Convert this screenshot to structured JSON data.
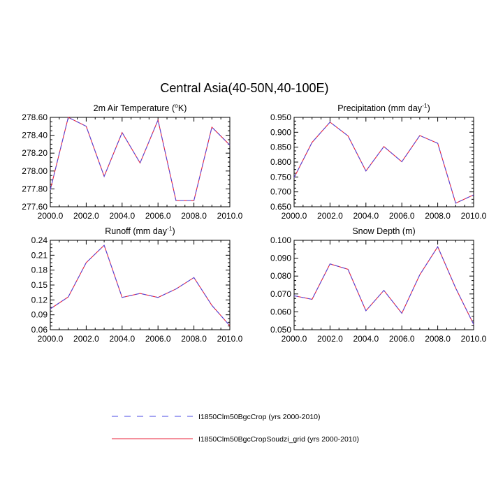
{
  "figure": {
    "title": "Central Asia(40-50N,40-100E)"
  },
  "legend": {
    "items": [
      {
        "label": "I1850Clm50BgcCrop (yrs 2000-2010)",
        "color": "#4a4ae6",
        "dash": "dashed"
      },
      {
        "label": "I1850Clm50BgcCropSoudzi_grid (yrs 2000-2010)",
        "color": "#e8203a",
        "dash": "solid"
      }
    ]
  },
  "chart_data": [
    {
      "type": "line",
      "title": "2m Air Temperature (°K)",
      "title_parts": [
        "2m Air Temperature (",
        "o",
        "K)"
      ],
      "xlim": [
        2000,
        2010
      ],
      "ylim": [
        277.6,
        278.6
      ],
      "xticks": [
        "2000.0",
        "2002.0",
        "2004.0",
        "2006.0",
        "2008.0",
        "2010.0"
      ],
      "yticks": [
        "277.60",
        "277.80",
        "278.00",
        "278.20",
        "278.40",
        "278.60"
      ],
      "x": [
        2000,
        2001,
        2002,
        2003,
        2004,
        2005,
        2006,
        2007,
        2008,
        2009,
        2010
      ],
      "series": [
        {
          "name": "I1850Clm50BgcCrop (yrs 2000-2010)",
          "values": [
            277.79,
            278.6,
            278.5,
            277.94,
            278.43,
            278.09,
            278.57,
            277.67,
            277.67,
            278.49,
            278.29
          ]
        },
        {
          "name": "I1850Clm50BgcCropSoudzi_grid (yrs 2000-2010)",
          "values": [
            277.79,
            278.6,
            278.5,
            277.94,
            278.43,
            278.09,
            278.57,
            277.67,
            277.67,
            278.49,
            278.29
          ]
        }
      ]
    },
    {
      "type": "line",
      "title": "Precipitation (mm day-1)",
      "title_parts": [
        "Precipitation (mm day",
        "-1",
        ")"
      ],
      "xlim": [
        2000,
        2010
      ],
      "ylim": [
        0.65,
        0.95
      ],
      "xticks": [
        "2000.0",
        "2002.0",
        "2004.0",
        "2006.0",
        "2008.0",
        "2010.0"
      ],
      "yticks": [
        "0.650",
        "0.700",
        "0.750",
        "0.800",
        "0.850",
        "0.900",
        "0.950"
      ],
      "x": [
        2000,
        2001,
        2002,
        2003,
        2004,
        2005,
        2006,
        2007,
        2008,
        2009,
        2010
      ],
      "series": [
        {
          "name": "I1850Clm50BgcCrop (yrs 2000-2010)",
          "values": [
            0.748,
            0.866,
            0.934,
            0.888,
            0.77,
            0.852,
            0.801,
            0.889,
            0.863,
            0.662,
            0.69
          ]
        },
        {
          "name": "I1850Clm50BgcCropSoudzi_grid (yrs 2000-2010)",
          "values": [
            0.748,
            0.866,
            0.934,
            0.888,
            0.77,
            0.852,
            0.801,
            0.889,
            0.863,
            0.662,
            0.69
          ]
        }
      ]
    },
    {
      "type": "line",
      "title": "Runoff (mm day-1)",
      "title_parts": [
        "Runoff (mm day",
        "-1",
        ")"
      ],
      "xlim": [
        2000,
        2010
      ],
      "ylim": [
        0.06,
        0.24
      ],
      "xticks": [
        "2000.0",
        "2002.0",
        "2004.0",
        "2006.0",
        "2008.0",
        "2010.0"
      ],
      "yticks": [
        "0.06",
        "0.09",
        "0.12",
        "0.15",
        "0.18",
        "0.21",
        "0.24"
      ],
      "x": [
        2000,
        2001,
        2002,
        2003,
        2004,
        2005,
        2006,
        2007,
        2008,
        2009,
        2010
      ],
      "series": [
        {
          "name": "I1850Clm50BgcCrop (yrs 2000-2010)",
          "values": [
            0.102,
            0.126,
            0.195,
            0.23,
            0.125,
            0.133,
            0.125,
            0.142,
            0.165,
            0.109,
            0.068
          ]
        },
        {
          "name": "I1850Clm50BgcCropSoudzi_grid (yrs 2000-2010)",
          "values": [
            0.102,
            0.126,
            0.195,
            0.23,
            0.125,
            0.133,
            0.125,
            0.142,
            0.165,
            0.109,
            0.068
          ]
        }
      ]
    },
    {
      "type": "line",
      "title": "Snow Depth (m)",
      "title_parts": [
        "Snow Depth (m)",
        "",
        ""
      ],
      "xlim": [
        2000,
        2010
      ],
      "ylim": [
        0.05,
        0.1
      ],
      "xticks": [
        "2000.0",
        "2002.0",
        "2004.0",
        "2006.0",
        "2008.0",
        "2010.0"
      ],
      "yticks": [
        "0.050",
        "0.060",
        "0.070",
        "0.080",
        "0.090",
        "0.100"
      ],
      "x": [
        2000,
        2001,
        2002,
        2003,
        2004,
        2005,
        2006,
        2007,
        2008,
        2009,
        2010
      ],
      "series": [
        {
          "name": "I1850Clm50BgcCrop (yrs 2000-2010)",
          "values": [
            0.069,
            0.067,
            0.0868,
            0.0838,
            0.0606,
            0.072,
            0.0592,
            0.0807,
            0.0964,
            0.0733,
            0.053
          ]
        },
        {
          "name": "I1850Clm50BgcCropSoudzi_grid (yrs 2000-2010)",
          "values": [
            0.069,
            0.067,
            0.0868,
            0.0838,
            0.0606,
            0.072,
            0.0592,
            0.0807,
            0.0964,
            0.0733,
            0.053
          ]
        }
      ]
    }
  ]
}
